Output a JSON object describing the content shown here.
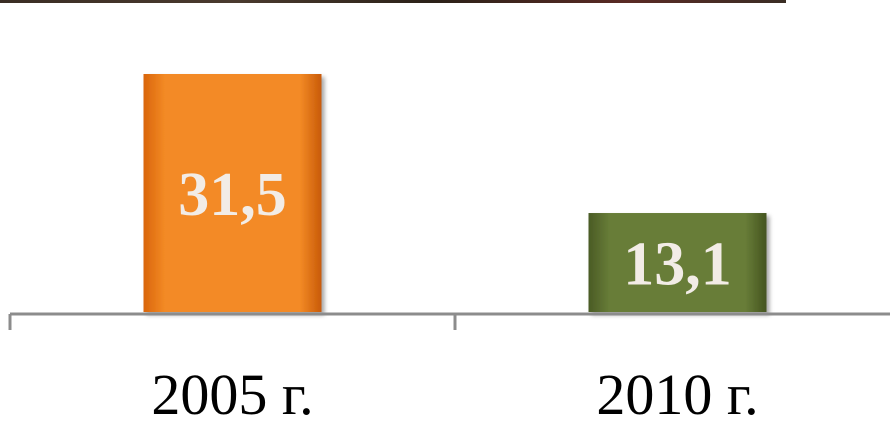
{
  "chart_data": {
    "type": "bar",
    "categories": [
      "2005 г.",
      "2010 г."
    ],
    "values": [
      31.5,
      13.1
    ],
    "data_labels": [
      "31,5",
      "13,1"
    ],
    "colors": [
      "#f07d14",
      "#5d7130"
    ],
    "title": "",
    "xlabel": "",
    "ylabel": "",
    "ylim": [
      0,
      36
    ],
    "grid": false,
    "legend": "none"
  }
}
